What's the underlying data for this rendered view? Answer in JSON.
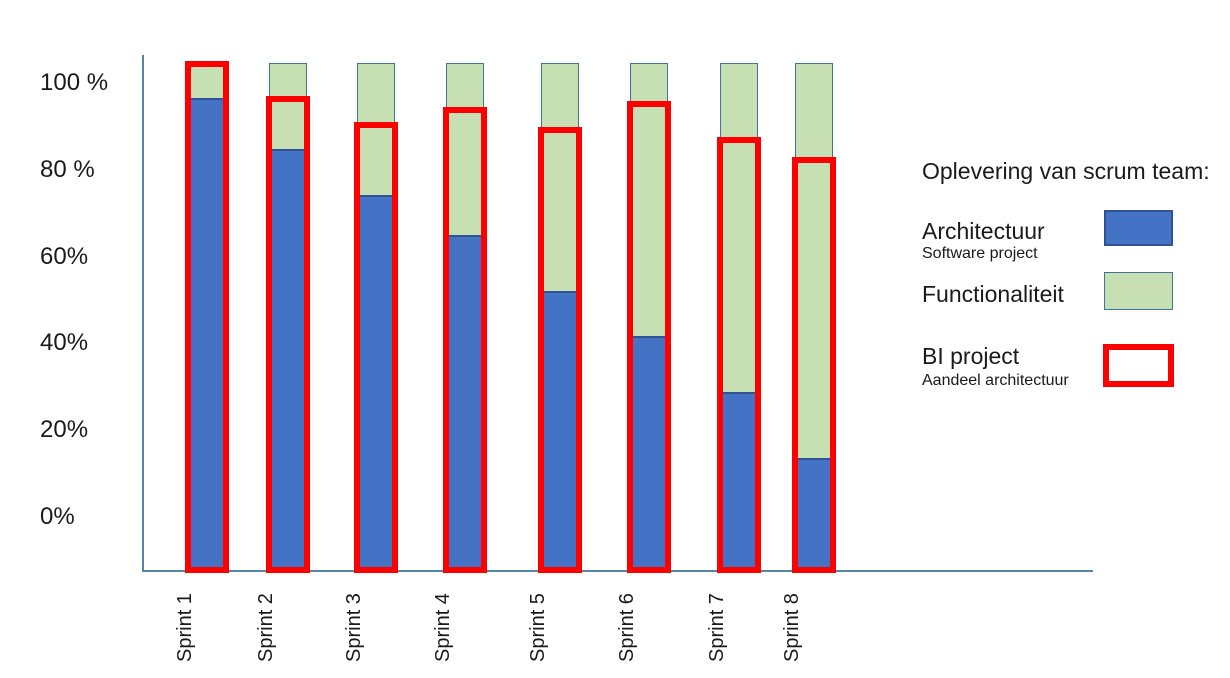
{
  "chart_data": {
    "type": "bar",
    "stacked": true,
    "title": "",
    "categories": [
      "Sprint 1",
      "Sprint 2",
      "Sprint 3",
      "Sprint 4",
      "Sprint 5",
      "Sprint 6",
      "Sprint 7",
      "Sprint 8"
    ],
    "series": [
      {
        "name": "Architectuur",
        "color": "#4472c4",
        "values": [
          93,
          83,
          74,
          66,
          55,
          46,
          35,
          22
        ]
      },
      {
        "name": "Functionaliteit",
        "color": "#c6e0b4",
        "values": [
          7,
          17,
          26,
          34,
          45,
          54,
          65,
          78
        ]
      }
    ],
    "overlay": {
      "name": "BI project (Aandeel architectuur)",
      "color": "#ff0000",
      "style": "outlined-box",
      "values": [
        100,
        93,
        88,
        91,
        87,
        92,
        85,
        81
      ]
    },
    "unit": "%",
    "xlabel": "",
    "ylabel": "",
    "y_ticks": [
      "100 %",
      "80 %",
      "60%",
      "40%",
      "20%",
      "0%"
    ],
    "y_tick_values": [
      100,
      80,
      60,
      40,
      20,
      0
    ],
    "ylim": [
      0,
      100
    ],
    "grid": false,
    "legend_position": "right"
  },
  "legend": {
    "title": "Oplevering van scrum team:",
    "items": [
      {
        "label": "Architectuur",
        "sublabel": "Software project",
        "swatch": "blue-fill"
      },
      {
        "label": "Functionaliteit",
        "sublabel": "",
        "swatch": "green-fill"
      },
      {
        "label": "BI project",
        "sublabel": "Aandeel architectuur",
        "swatch": "red-outline"
      }
    ]
  },
  "colors": {
    "architectuur_fill": "#4472c4",
    "functionaliteit_fill": "#c6e0b4",
    "bi_project_outline": "#ff0000",
    "segment_border": "#41719c",
    "segment_divider": "#2f5496",
    "axis_line": "#5585a8",
    "text": "#1a1a1a",
    "background": "#ffffff"
  }
}
